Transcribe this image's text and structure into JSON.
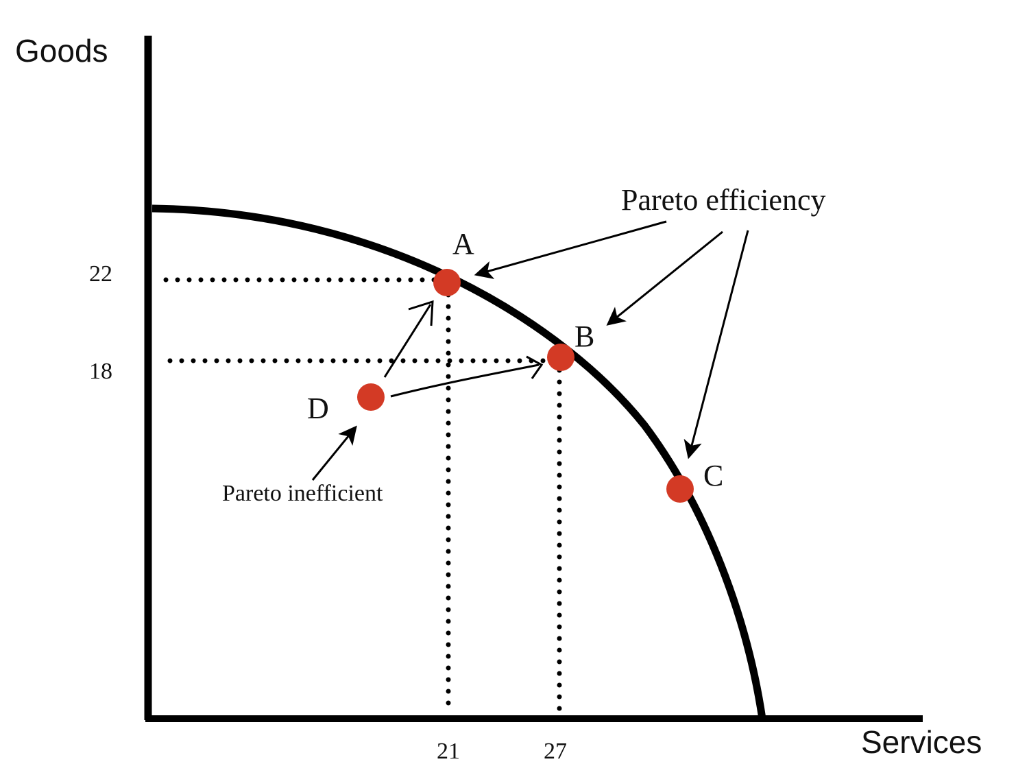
{
  "axes": {
    "y_title": "Goods",
    "x_title": "Services",
    "y_ticks": [
      "22",
      "18"
    ],
    "x_ticks": [
      "21",
      "27"
    ]
  },
  "points": {
    "A": "A",
    "B": "B",
    "C": "C",
    "D": "D"
  },
  "annotations": {
    "efficient": "Pareto efficiency",
    "inefficient": "Pareto inefficient"
  },
  "colors": {
    "point": "#d33a25",
    "line": "#000000"
  }
}
